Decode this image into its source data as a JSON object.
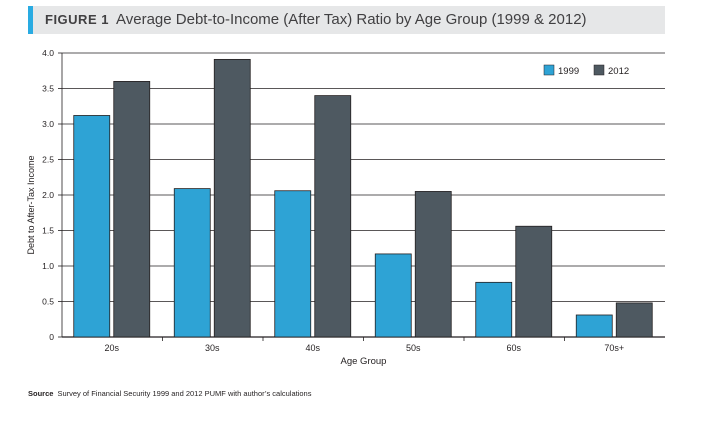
{
  "figure": {
    "label": "FIGURE 1",
    "title": "Average Debt-to-Income (After Tax) Ratio by Age Group (1999 & 2012)"
  },
  "source": {
    "label": "Source",
    "text": "Survey of Financial Security 1999 and 2012 PUMF with author’s calculations"
  },
  "colors": {
    "series_1999": "#2ea3d5",
    "series_2012": "#4e5961",
    "axis": "#231f20",
    "title_bg": "#e6e7e8",
    "accent": "#29abe2"
  },
  "chart_data": {
    "type": "bar",
    "categories": [
      "20s",
      "30s",
      "40s",
      "50s",
      "60s",
      "70s+"
    ],
    "series": [
      {
        "name": "1999",
        "values": [
          3.12,
          2.09,
          2.06,
          1.17,
          0.77,
          0.31
        ]
      },
      {
        "name": "2012",
        "values": [
          3.6,
          3.91,
          3.4,
          2.05,
          1.56,
          0.48
        ]
      }
    ],
    "xlabel": "Age Group",
    "ylabel": "Debt to After-Tax Income",
    "ylim": [
      0,
      4
    ],
    "yticks": [
      "0",
      "0.5",
      "1.0",
      "1.5",
      "2.0",
      "2.5",
      "3.0",
      "3.5",
      "4.0"
    ],
    "grid": true,
    "legend_position": "top-right"
  }
}
